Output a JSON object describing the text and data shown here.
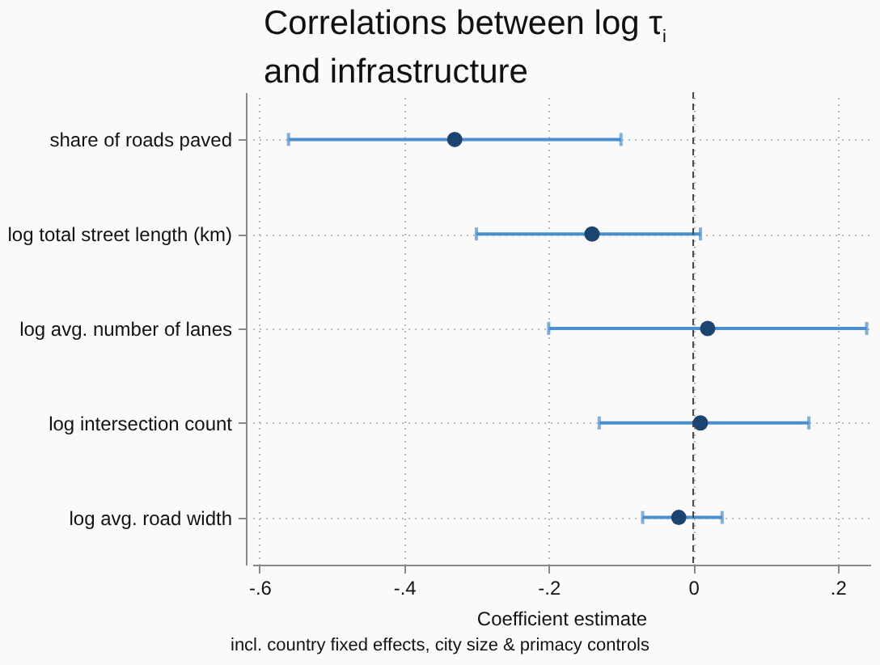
{
  "chart_data": {
    "type": "scatter",
    "orientation": "horizontal",
    "title": "Correlations between log τ$_{i}$ and infrastructure",
    "xlabel": "Coefficient estimate",
    "annotations": [
      "incl. country fixed effects, city size & primacy controls"
    ],
    "categories": [
      "share of roads paved",
      "log total street length (km)",
      "log avg. number of lanes",
      "log intersection count",
      "log avg. road width"
    ],
    "series": [
      {
        "color": "#1b4570",
        "values": [
          -0.33,
          -0.14,
          0.02,
          0.01,
          -0.02
        ],
        "errors": [
          [
            -0.56,
            -0.1
          ],
          [
            -0.3,
            0.01
          ],
          [
            -0.2,
            0.24
          ],
          [
            -0.13,
            0.16
          ],
          [
            -0.07,
            0.04
          ]
        ]
      }
    ],
    "xlim": [
      -0.61,
      0.245
    ],
    "xticks": [
      {
        "value": -0.6,
        "label": "-.6"
      },
      {
        "value": -0.4,
        "label": "-.4"
      },
      {
        "value": -0.2,
        "label": "-.2"
      },
      {
        "value": 0,
        "label": "0"
      },
      {
        "value": 0.2,
        "label": ".2"
      }
    ],
    "ref_lines": [
      {
        "axis": "x",
        "value": 0,
        "line_style": "dashed"
      }
    ],
    "grid": true,
    "marker": "circle"
  }
}
